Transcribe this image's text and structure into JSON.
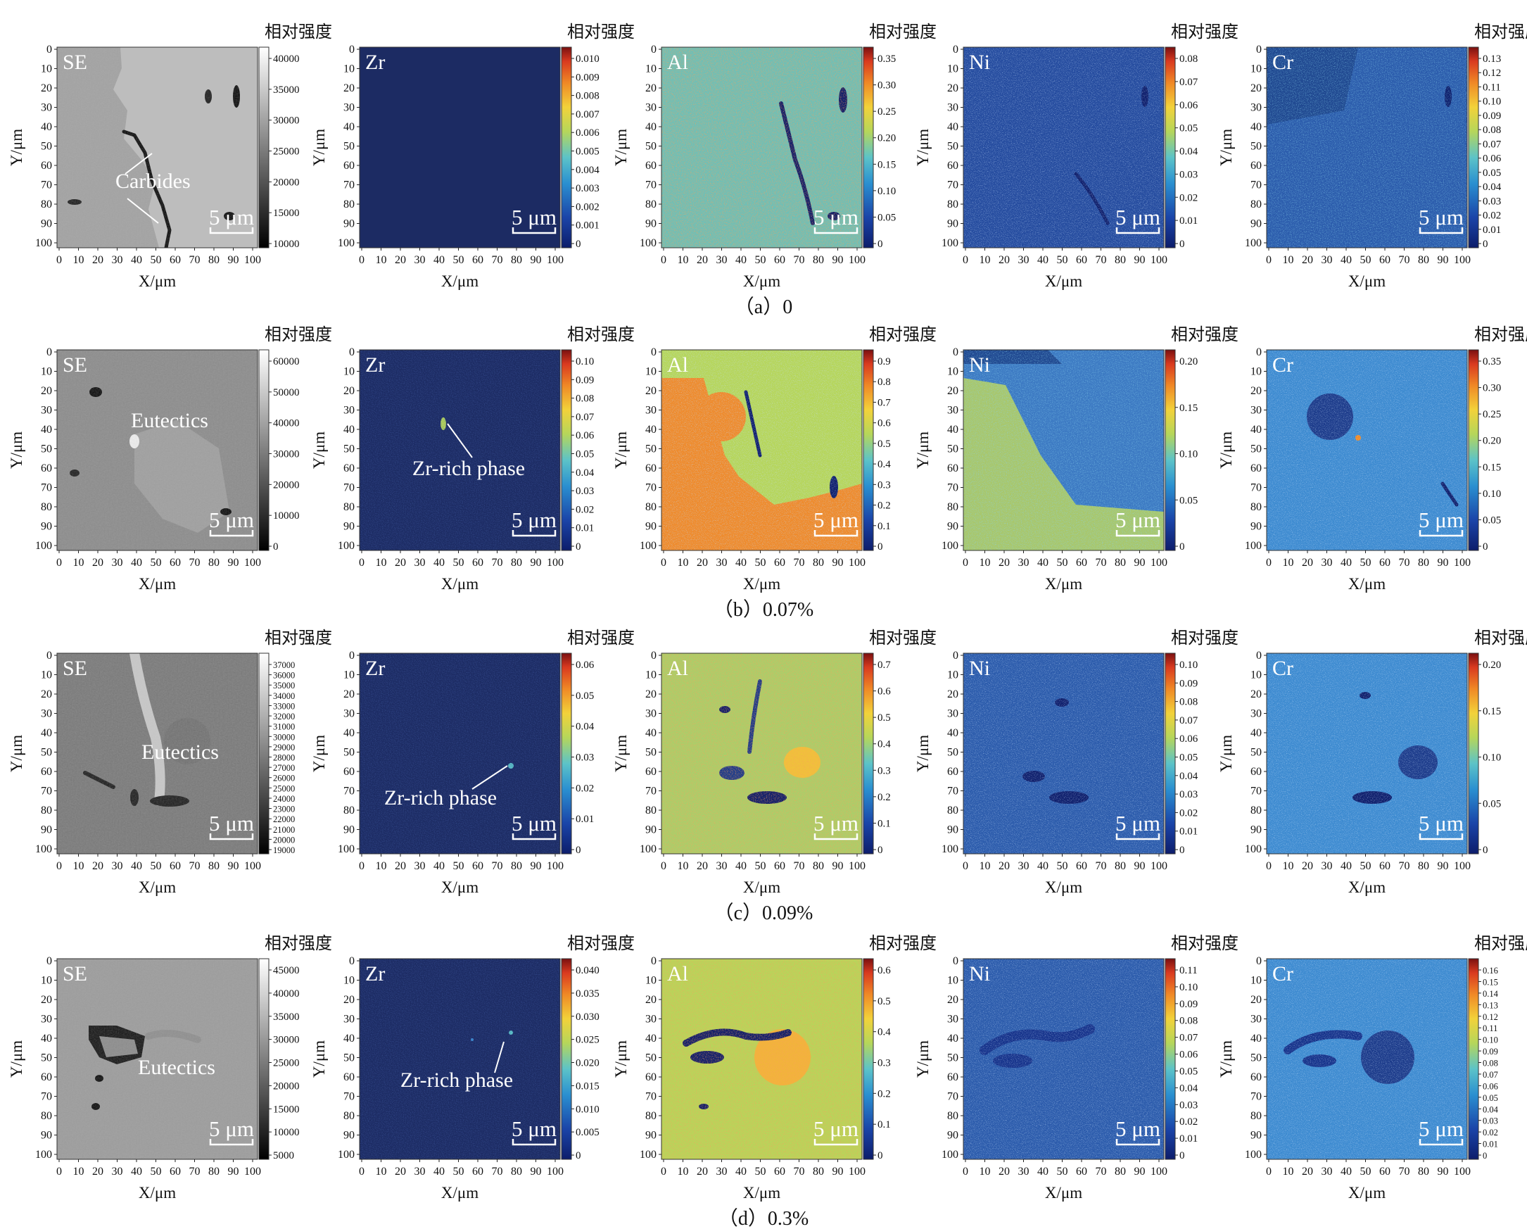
{
  "figure": {
    "colorbar_title": "相对强度",
    "x_axis_label": "X/μm",
    "y_axis_label": "Y/μm",
    "axis_ticks": [
      "0",
      "10",
      "20",
      "30",
      "40",
      "50",
      "60",
      "70",
      "80",
      "90",
      "100"
    ],
    "scale_bar": "5 μm",
    "panel_labels": [
      "SE",
      "Zr",
      "Al",
      "Ni",
      "Cr"
    ],
    "rows": [
      {
        "caption": "（a）0",
        "colorbar_ticks": [
          [
            "40000",
            "35000",
            "30000",
            "25000",
            "20000",
            "15000",
            "10000"
          ],
          [
            "0.010",
            "0.009",
            "0.008",
            "0.007",
            "0.006",
            "0.005",
            "0.004",
            "0.003",
            "0.002",
            "0.001",
            "0"
          ],
          [
            "0.35",
            "0.30",
            "0.25",
            "0.20",
            "0.15",
            "0.10",
            "0.05",
            "0"
          ],
          [
            "0.08",
            "0.07",
            "0.06",
            "0.05",
            "0.04",
            "0.03",
            "0.02",
            "0.01",
            "0"
          ],
          [
            "0.13",
            "0.12",
            "0.11",
            "0.10",
            "0.09",
            "0.08",
            "0.07",
            "0.06",
            "0.05",
            "0.04",
            "0.03",
            "0.02",
            "0.01",
            "0"
          ]
        ],
        "annotations": [
          {
            "panel": 0,
            "text": "Carbides"
          }
        ]
      },
      {
        "caption": "（b）0.07%",
        "colorbar_ticks": [
          [
            "60000",
            "50000",
            "40000",
            "30000",
            "20000",
            "10000",
            "0"
          ],
          [
            "0.10",
            "0.09",
            "0.08",
            "0.07",
            "0.06",
            "0.05",
            "0.04",
            "0.03",
            "0.02",
            "0.01",
            "0"
          ],
          [
            "0.9",
            "0.8",
            "0.7",
            "0.6",
            "0.5",
            "0.4",
            "0.3",
            "0.2",
            "0.1",
            "0"
          ],
          [
            "0.20",
            "0.15",
            "0.10",
            "0.05",
            "0"
          ],
          [
            "0.35",
            "0.30",
            "0.25",
            "0.20",
            "0.15",
            "0.10",
            "0.05",
            "0"
          ]
        ],
        "annotations": [
          {
            "panel": 0,
            "text": "Eutectics"
          },
          {
            "panel": 1,
            "text": "Zr-rich phase"
          }
        ]
      },
      {
        "caption": "（c）0.09%",
        "colorbar_ticks": [
          [
            "37000",
            "36000",
            "35000",
            "34000",
            "33000",
            "32000",
            "31000",
            "30000",
            "29000",
            "28000",
            "27000",
            "26000",
            "25000",
            "24000",
            "23000",
            "22000",
            "21000",
            "20000",
            "19000"
          ],
          [
            "0.06",
            "0.05",
            "0.04",
            "0.03",
            "0.02",
            "0.01",
            "0"
          ],
          [
            "0.7",
            "0.6",
            "0.5",
            "0.4",
            "0.3",
            "0.2",
            "0.1",
            "0"
          ],
          [
            "0.10",
            "0.09",
            "0.08",
            "0.07",
            "0.06",
            "0.05",
            "0.04",
            "0.03",
            "0.02",
            "0.01",
            "0"
          ],
          [
            "0.20",
            "0.15",
            "0.10",
            "0.05",
            "0"
          ]
        ],
        "annotations": [
          {
            "panel": 0,
            "text": "Eutectics"
          },
          {
            "panel": 1,
            "text": "Zr-rich phase"
          }
        ]
      },
      {
        "caption": "（d）0.3%",
        "colorbar_ticks": [
          [
            "45000",
            "40000",
            "35000",
            "30000",
            "25000",
            "20000",
            "15000",
            "10000",
            "5000"
          ],
          [
            "0.040",
            "0.035",
            "0.030",
            "0.025",
            "0.020",
            "0.015",
            "0.010",
            "0.005",
            "0"
          ],
          [
            "0.6",
            "0.5",
            "0.4",
            "0.3",
            "0.2",
            "0.1",
            "0"
          ],
          [
            "0.11",
            "0.10",
            "0.09",
            "0.08",
            "0.07",
            "0.06",
            "0.05",
            "0.04",
            "0.03",
            "0.02",
            "0.01",
            "0"
          ],
          [
            "0.16",
            "0.15",
            "0.14",
            "0.13",
            "0.12",
            "0.11",
            "0.10",
            "0.09",
            "0.08",
            "0.07",
            "0.06",
            "0.05",
            "0.04",
            "0.03",
            "0.02",
            "0.01",
            "0"
          ]
        ],
        "annotations": [
          {
            "panel": 0,
            "text": "Eutectics"
          },
          {
            "panel": 1,
            "text": "Zr-rich phase"
          }
        ]
      }
    ]
  }
}
